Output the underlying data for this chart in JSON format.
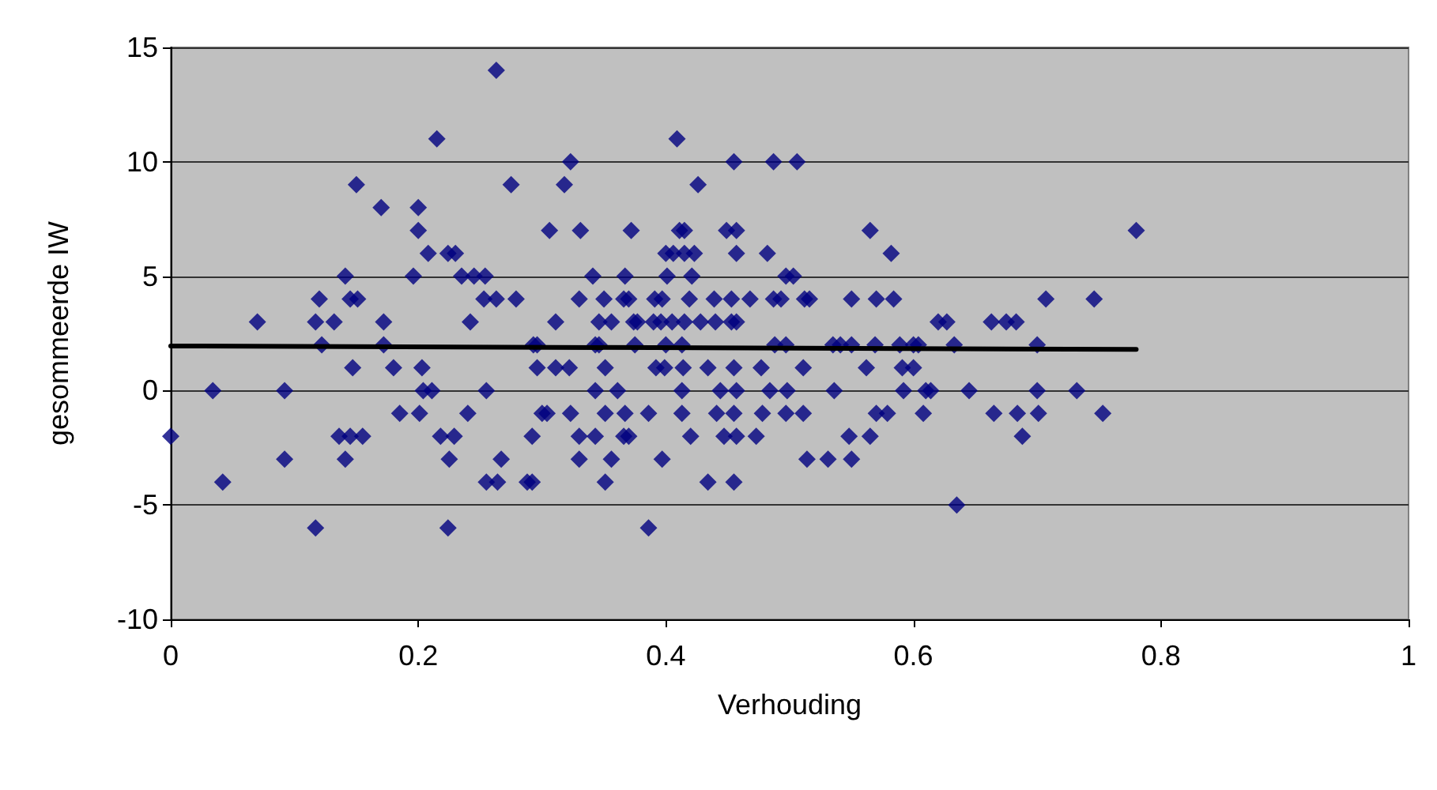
{
  "chart_data": {
    "type": "scatter",
    "xlabel": "Verhouding",
    "ylabel": "gesommeerde IW",
    "xlim": [
      0,
      1
    ],
    "ylim": [
      -10,
      15
    ],
    "xticks": [
      0,
      0.2,
      0.4,
      0.6,
      0.8,
      1
    ],
    "yticks": [
      -10,
      -5,
      0,
      5,
      10,
      15
    ],
    "grid": "y",
    "marker": "diamond",
    "series": [
      {
        "color": "#000080",
        "x": [
          0.263,
          0.215,
          0.409,
          0.323,
          0.455,
          0.487,
          0.506,
          0.15,
          0.275,
          0.318,
          0.426,
          0.17,
          0.2,
          0.2,
          0.306,
          0.331,
          0.372,
          0.411,
          0.415,
          0.449,
          0.457,
          0.565,
          0.78,
          0.208,
          0.224,
          0.23,
          0.4,
          0.406,
          0.415,
          0.423,
          0.457,
          0.482,
          0.582,
          0.141,
          0.196,
          0.235,
          0.245,
          0.254,
          0.341,
          0.367,
          0.401,
          0.421,
          0.497,
          0.503,
          0.12,
          0.145,
          0.151,
          0.253,
          0.263,
          0.279,
          0.33,
          0.35,
          0.366,
          0.37,
          0.391,
          0.397,
          0.419,
          0.439,
          0.453,
          0.468,
          0.487,
          0.493,
          0.512,
          0.516,
          0.55,
          0.57,
          0.584,
          0.707,
          0.746,
          0.07,
          0.117,
          0.132,
          0.172,
          0.242,
          0.311,
          0.346,
          0.356,
          0.374,
          0.377,
          0.39,
          0.396,
          0.405,
          0.415,
          0.428,
          0.44,
          0.453,
          0.457,
          0.62,
          0.627,
          0.663,
          0.675,
          0.683,
          0.122,
          0.172,
          0.293,
          0.296,
          0.343,
          0.346,
          0.375,
          0.4,
          0.413,
          0.488,
          0.497,
          0.535,
          0.541,
          0.55,
          0.569,
          0.589,
          0.6,
          0.604,
          0.633,
          0.7,
          0.147,
          0.18,
          0.203,
          0.296,
          0.311,
          0.322,
          0.351,
          0.392,
          0.399,
          0.414,
          0.434,
          0.455,
          0.477,
          0.511,
          0.562,
          0.591,
          0.6,
          0.034,
          0.092,
          0.204,
          0.211,
          0.255,
          0.343,
          0.361,
          0.413,
          0.444,
          0.457,
          0.484,
          0.498,
          0.536,
          0.592,
          0.61,
          0.614,
          0.645,
          0.7,
          0.732,
          0.185,
          0.201,
          0.24,
          0.3,
          0.304,
          0.323,
          0.351,
          0.367,
          0.386,
          0.413,
          0.441,
          0.455,
          0.478,
          0.497,
          0.511,
          0.57,
          0.579,
          0.608,
          0.665,
          0.684,
          0.701,
          0.753,
          0,
          0.136,
          0.145,
          0.155,
          0.218,
          0.229,
          0.292,
          0.33,
          0.343,
          0.366,
          0.37,
          0.42,
          0.447,
          0.457,
          0.473,
          0.548,
          0.565,
          0.688,
          0.092,
          0.141,
          0.225,
          0.267,
          0.33,
          0.356,
          0.397,
          0.514,
          0.531,
          0.55,
          0.042,
          0.255,
          0.264,
          0.288,
          0.292,
          0.351,
          0.434,
          0.455,
          0.635,
          0.117,
          0.224,
          0.386
        ],
        "values": [
          14,
          11,
          11,
          10,
          10,
          10,
          10,
          9,
          9,
          9,
          9,
          8,
          8,
          7,
          7,
          7,
          7,
          7,
          7,
          7,
          7,
          7,
          7,
          6,
          6,
          6,
          6,
          6,
          6,
          6,
          6,
          6,
          6,
          5,
          5,
          5,
          5,
          5,
          5,
          5,
          5,
          5,
          5,
          5,
          4,
          4,
          4,
          4,
          4,
          4,
          4,
          4,
          4,
          4,
          4,
          4,
          4,
          4,
          4,
          4,
          4,
          4,
          4,
          4,
          4,
          4,
          4,
          4,
          4,
          3,
          3,
          3,
          3,
          3,
          3,
          3,
          3,
          3,
          3,
          3,
          3,
          3,
          3,
          3,
          3,
          3,
          3,
          3,
          3,
          3,
          3,
          3,
          2,
          2,
          2,
          2,
          2,
          2,
          2,
          2,
          2,
          2,
          2,
          2,
          2,
          2,
          2,
          2,
          2,
          2,
          2,
          2,
          1,
          1,
          1,
          1,
          1,
          1,
          1,
          1,
          1,
          1,
          1,
          1,
          1,
          1,
          1,
          1,
          1,
          0,
          0,
          0,
          0,
          0,
          0,
          0,
          0,
          0,
          0,
          0,
          0,
          0,
          0,
          0,
          0,
          0,
          0,
          0,
          -1,
          -1,
          -1,
          -1,
          -1,
          -1,
          -1,
          -1,
          -1,
          -1,
          -1,
          -1,
          -1,
          -1,
          -1,
          -1,
          -1,
          -1,
          -1,
          -1,
          -1,
          -1,
          -2,
          -2,
          -2,
          -2,
          -2,
          -2,
          -2,
          -2,
          -2,
          -2,
          -2,
          -2,
          -2,
          -2,
          -2,
          -2,
          -2,
          -2,
          -3,
          -3,
          -3,
          -3,
          -3,
          -3,
          -3,
          -3,
          -3,
          -3,
          -4,
          -4,
          -4,
          -4,
          -4,
          -4,
          -4,
          -4,
          -5,
          -6,
          -6,
          -6
        ]
      },
      {
        "type": "line",
        "color": "#000000",
        "marker": "none",
        "line_style": "solid",
        "x": [
          0,
          0.78
        ],
        "values": [
          1.95,
          1.8
        ]
      }
    ]
  }
}
